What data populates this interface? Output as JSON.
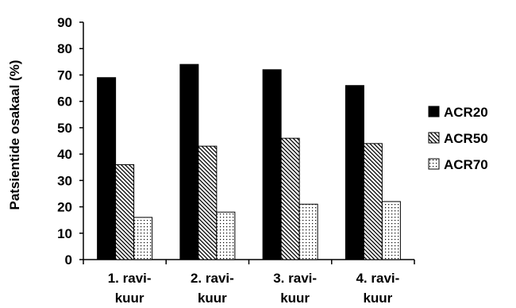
{
  "chart_data": {
    "type": "bar",
    "ylabel": "Patsientide osakaal (%)",
    "xlabel": "",
    "ylim": [
      0,
      90
    ],
    "yticks": [
      0,
      10,
      20,
      30,
      40,
      50,
      60,
      70,
      80,
      90
    ],
    "grid": false,
    "legend_position": "right",
    "categories": [
      [
        "1. ravi-",
        "kuur"
      ],
      [
        "2. ravi-",
        "kuur"
      ],
      [
        "3. ravi-",
        "kuur"
      ],
      [
        "4. ravi-",
        "kuur"
      ]
    ],
    "series": [
      {
        "name": "ACR20",
        "values": [
          69,
          74,
          72,
          66
        ],
        "pattern": "solid-black"
      },
      {
        "name": "ACR50",
        "values": [
          36,
          43,
          46,
          44
        ],
        "pattern": "diagonal-hatch"
      },
      {
        "name": "ACR70",
        "values": [
          16,
          18,
          21,
          22
        ],
        "pattern": "dotted"
      }
    ]
  }
}
